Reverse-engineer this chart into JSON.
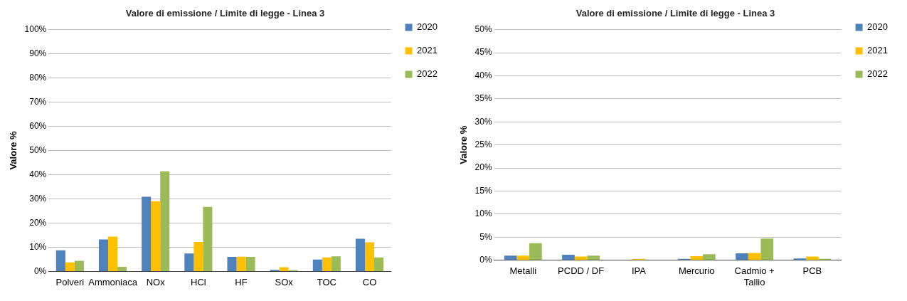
{
  "chart_data": [
    {
      "type": "bar",
      "title": "Valore di emissione / Limite di legge - Linea 3",
      "ylabel": "Valore %",
      "categories": [
        "Polveri",
        "Ammoniaca",
        "NOx",
        "HCl",
        "HF",
        "SOx",
        "TOC",
        "CO"
      ],
      "series": [
        {
          "name": "2020",
          "color": "#4f81bd",
          "values": [
            8.7,
            13.2,
            30.9,
            7.4,
            6.0,
            0.6,
            4.9,
            13.5
          ]
        },
        {
          "name": "2021",
          "color": "#ffc000",
          "values": [
            3.7,
            14.4,
            29.0,
            12.2,
            6.1,
            1.7,
            5.8,
            12.0
          ]
        },
        {
          "name": "2022",
          "color": "#9bbb59",
          "values": [
            4.4,
            1.9,
            41.4,
            26.7,
            6.0,
            0.5,
            6.2,
            5.8
          ]
        }
      ],
      "ylim": [
        0,
        100
      ],
      "yticks": [
        {
          "value": 0,
          "label": "0%"
        },
        {
          "value": 10,
          "label": "10%"
        },
        {
          "value": 20,
          "label": "20%"
        },
        {
          "value": 30,
          "label": "30%"
        },
        {
          "value": 40,
          "label": "40%"
        },
        {
          "value": 50,
          "label": "50%"
        },
        {
          "value": 60,
          "label": "60%"
        },
        {
          "value": 70,
          "label": "70%"
        },
        {
          "value": 80,
          "label": "80%"
        },
        {
          "value": 90,
          "label": "90%"
        },
        {
          "value": 100,
          "label": "100%"
        }
      ],
      "grid": "y",
      "legend": "top right"
    },
    {
      "type": "bar",
      "title": "Valore di emissione / Limite di legge - Linea 3",
      "ylabel": "Valore %",
      "categories": [
        "Metalli",
        "PCDD / DF",
        "IPA",
        "Mercurio",
        "Cadmio + Tallio",
        "PCB"
      ],
      "series": [
        {
          "name": "2020",
          "color": "#4f81bd",
          "values": [
            1.0,
            1.2,
            null,
            0.3,
            1.5,
            0.4
          ]
        },
        {
          "name": "2021",
          "color": "#ffc000",
          "values": [
            1.0,
            0.8,
            0.3,
            0.9,
            1.6,
            0.8
          ]
        },
        {
          "name": "2022",
          "color": "#9bbb59",
          "values": [
            3.7,
            1.0,
            0.0,
            1.3,
            4.7,
            0.3
          ]
        }
      ],
      "ylim": [
        0,
        50
      ],
      "yticks": [
        {
          "value": 0,
          "label": "0%"
        },
        {
          "value": 5,
          "label": "5%"
        },
        {
          "value": 10,
          "label": "10%"
        },
        {
          "value": 15,
          "label": "15%"
        },
        {
          "value": 20,
          "label": "20%"
        },
        {
          "value": 25,
          "label": "25%"
        },
        {
          "value": 30,
          "label": "30%"
        },
        {
          "value": 35,
          "label": "35%"
        },
        {
          "value": 40,
          "label": "40%"
        },
        {
          "value": 45,
          "label": "45%"
        },
        {
          "value": 50,
          "label": "50%"
        }
      ],
      "grid": "y",
      "legend": "top right"
    }
  ]
}
